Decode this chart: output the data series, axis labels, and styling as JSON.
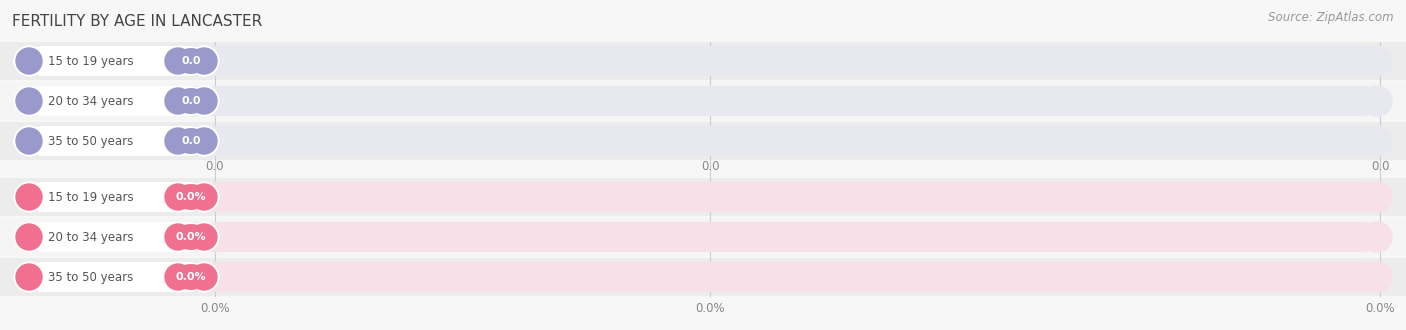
{
  "title": "FERTILITY BY AGE IN LANCASTER",
  "source": "Source: ZipAtlas.com",
  "top_group": {
    "categories": [
      "15 to 19 years",
      "20 to 34 years",
      "35 to 50 years"
    ],
    "values": [
      0.0,
      0.0,
      0.0
    ],
    "bar_color": "#9999cc",
    "bg_pill_color": "#e8e8f0",
    "value_label": [
      "0.0",
      "0.0",
      "0.0"
    ],
    "tick_labels": [
      "0.0",
      "0.0",
      "0.0"
    ]
  },
  "bottom_group": {
    "categories": [
      "15 to 19 years",
      "20 to 34 years",
      "35 to 50 years"
    ],
    "values": [
      0.0,
      0.0,
      0.0
    ],
    "bar_color": "#f07090",
    "bg_pill_color": "#f8e0e8",
    "value_label": [
      "0.0%",
      "0.0%",
      "0.0%"
    ],
    "tick_labels": [
      "0.0%",
      "0.0%",
      "0.0%"
    ]
  },
  "fig_bg_color": "#f7f7f7",
  "row_bg_colors": [
    "#f0f0f0",
    "#fafafa"
  ],
  "title_fontsize": 11,
  "source_fontsize": 8.5
}
